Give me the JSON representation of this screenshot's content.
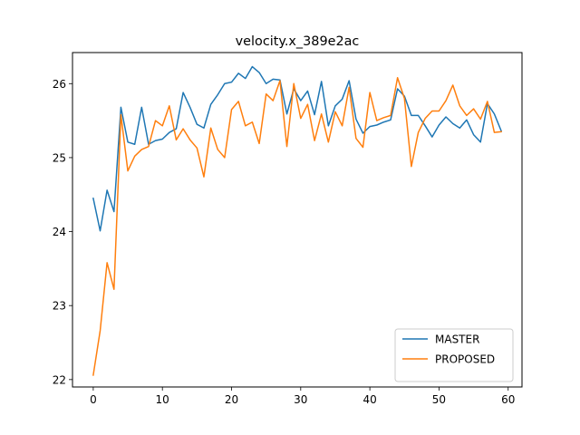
{
  "chart_data": {
    "type": "line",
    "title": "velocity.x_389e2ac",
    "xlabel": "",
    "ylabel": "",
    "xlim": [
      -3,
      62
    ],
    "ylim": [
      21.9,
      26.42
    ],
    "x_ticks": [
      0,
      10,
      20,
      30,
      40,
      50,
      60
    ],
    "y_ticks": [
      22,
      23,
      24,
      25,
      26
    ],
    "grid": false,
    "legend_position": "lower-right",
    "x": [
      0,
      1,
      2,
      3,
      4,
      5,
      6,
      7,
      8,
      9,
      10,
      11,
      12,
      13,
      14,
      15,
      16,
      17,
      18,
      19,
      20,
      21,
      22,
      23,
      24,
      25,
      26,
      27,
      28,
      29,
      30,
      31,
      32,
      33,
      34,
      35,
      36,
      37,
      38,
      39,
      40,
      41,
      42,
      43,
      44,
      45,
      46,
      47,
      48,
      49,
      50,
      51,
      52,
      53,
      54,
      55,
      56,
      57,
      58,
      59
    ],
    "series": [
      {
        "name": "MASTER",
        "color": "#1f77b4",
        "values": [
          24.45,
          24.01,
          24.56,
          24.27,
          25.68,
          25.21,
          25.18,
          25.68,
          25.18,
          25.23,
          25.25,
          25.34,
          25.39,
          25.88,
          25.68,
          25.45,
          25.4,
          25.72,
          25.85,
          26.0,
          26.02,
          26.14,
          26.07,
          26.23,
          26.15,
          26.0,
          26.06,
          26.05,
          25.59,
          25.93,
          25.77,
          25.9,
          25.58,
          26.03,
          25.43,
          25.7,
          25.79,
          26.04,
          25.52,
          25.33,
          25.42,
          25.44,
          25.48,
          25.51,
          25.93,
          25.83,
          25.57,
          25.57,
          25.43,
          25.28,
          25.44,
          25.55,
          25.46,
          25.4,
          25.51,
          25.31,
          25.21,
          25.73,
          25.59,
          25.36
        ]
      },
      {
        "name": "PROPOSED",
        "color": "#ff7f0e",
        "values": [
          22.06,
          22.66,
          23.58,
          23.22,
          25.58,
          24.82,
          25.02,
          25.11,
          25.15,
          25.5,
          25.43,
          25.7,
          25.24,
          25.39,
          25.24,
          25.13,
          24.74,
          25.4,
          25.11,
          25.0,
          25.65,
          25.76,
          25.43,
          25.48,
          25.19,
          25.86,
          25.77,
          26.04,
          25.15,
          26.0,
          25.53,
          25.72,
          25.23,
          25.59,
          25.21,
          25.62,
          25.43,
          25.95,
          25.26,
          25.14,
          25.88,
          25.5,
          25.54,
          25.57,
          26.08,
          25.8,
          24.88,
          25.34,
          25.53,
          25.63,
          25.63,
          25.77,
          25.98,
          25.7,
          25.57,
          25.66,
          25.52,
          25.76,
          25.34,
          25.35
        ]
      }
    ]
  }
}
